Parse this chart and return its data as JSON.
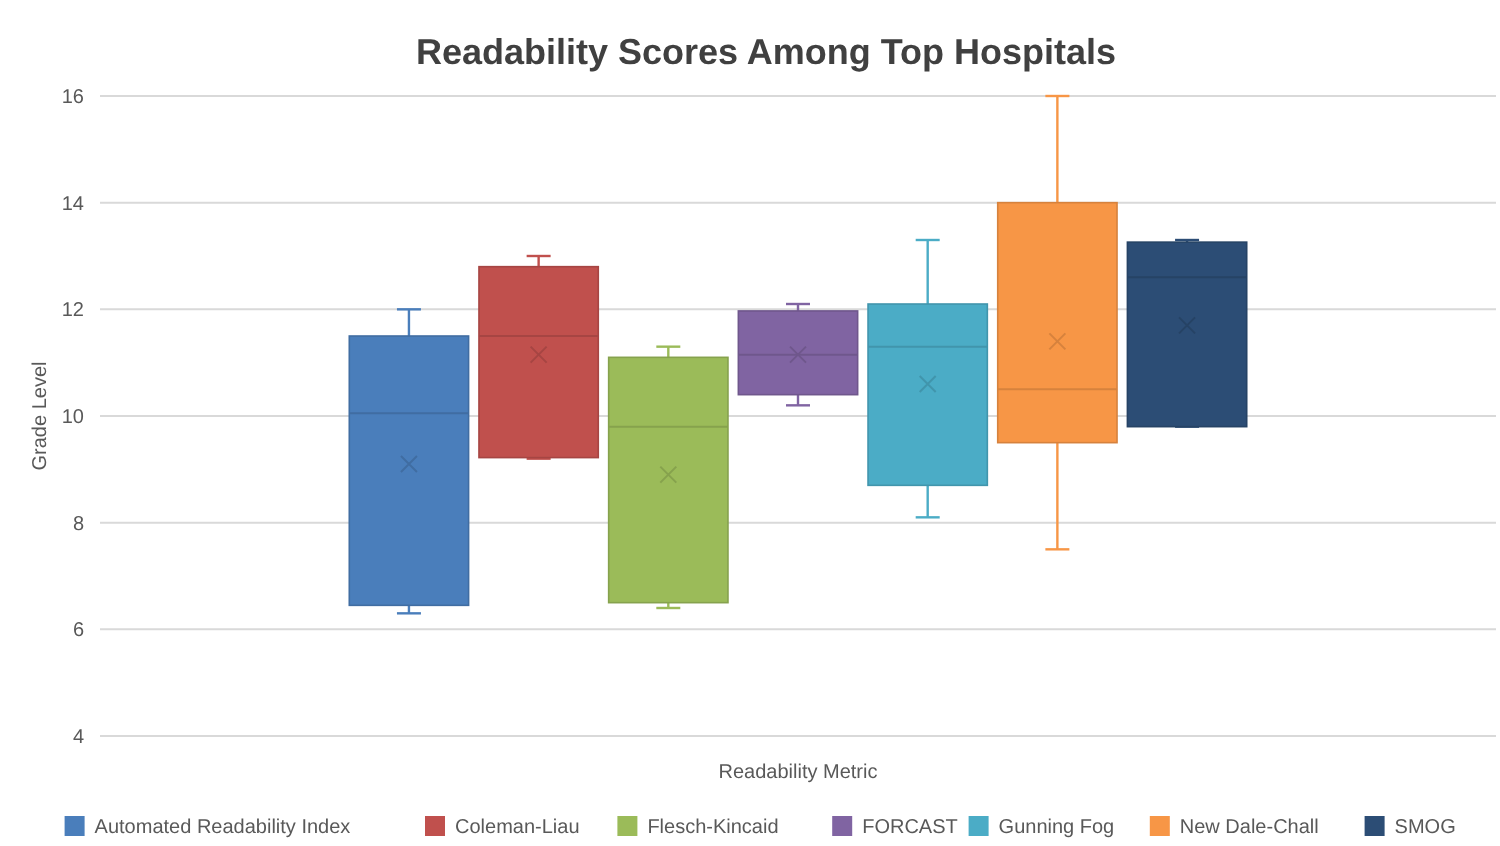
{
  "chart_data": {
    "type": "box",
    "title": "Readability Scores Among Top Hospitals",
    "xlabel": "Readability Metric",
    "ylabel": "Grade Level",
    "categories": [
      null
    ],
    "series": [
      {
        "name": "Automated Readability Index",
        "color": "#4a7ebb",
        "boxes": [
          {
            "low": 6.3,
            "q1": 6.45,
            "median": 10.05,
            "q3": 11.5,
            "high": 12.0,
            "mean": 9.1
          }
        ]
      },
      {
        "name": "Coleman-Liau",
        "color": "#c0504d",
        "boxes": [
          {
            "low": 9.2,
            "q1": 9.22,
            "median": 11.5,
            "q3": 12.8,
            "high": 13.0,
            "mean": 11.15
          }
        ]
      },
      {
        "name": "Flesch-Kincaid",
        "color": "#9bbb59",
        "boxes": [
          {
            "low": 6.4,
            "q1": 6.5,
            "median": 9.8,
            "q3": 11.1,
            "high": 11.3,
            "mean": 8.9
          }
        ]
      },
      {
        "name": "FORCAST",
        "color": "#8064a2",
        "boxes": [
          {
            "low": 10.2,
            "q1": 10.4,
            "median": 11.15,
            "q3": 11.97,
            "high": 12.1,
            "mean": 11.15
          }
        ]
      },
      {
        "name": "Gunning Fog",
        "color": "#4bacc6",
        "boxes": [
          {
            "low": 8.1,
            "q1": 8.7,
            "median": 11.3,
            "q3": 12.1,
            "high": 13.3,
            "mean": 10.6
          }
        ]
      },
      {
        "name": "New Dale-Chall",
        "color": "#f79646",
        "boxes": [
          {
            "low": 7.5,
            "q1": 9.5,
            "median": 10.5,
            "q3": 14.0,
            "high": 16.0,
            "mean": 11.4
          }
        ]
      },
      {
        "name": "SMOG",
        "color": "#2c4d75",
        "boxes": [
          {
            "low": 9.8,
            "q1": 9.8,
            "median": 12.6,
            "q3": 13.26,
            "high": 13.3,
            "mean": 11.7
          }
        ]
      }
    ],
    "ylim": [
      4,
      16
    ],
    "yticks": [
      4,
      6,
      8,
      10,
      12,
      14,
      16
    ],
    "grid": "y",
    "legend": "bottom",
    "marker": "cross"
  }
}
